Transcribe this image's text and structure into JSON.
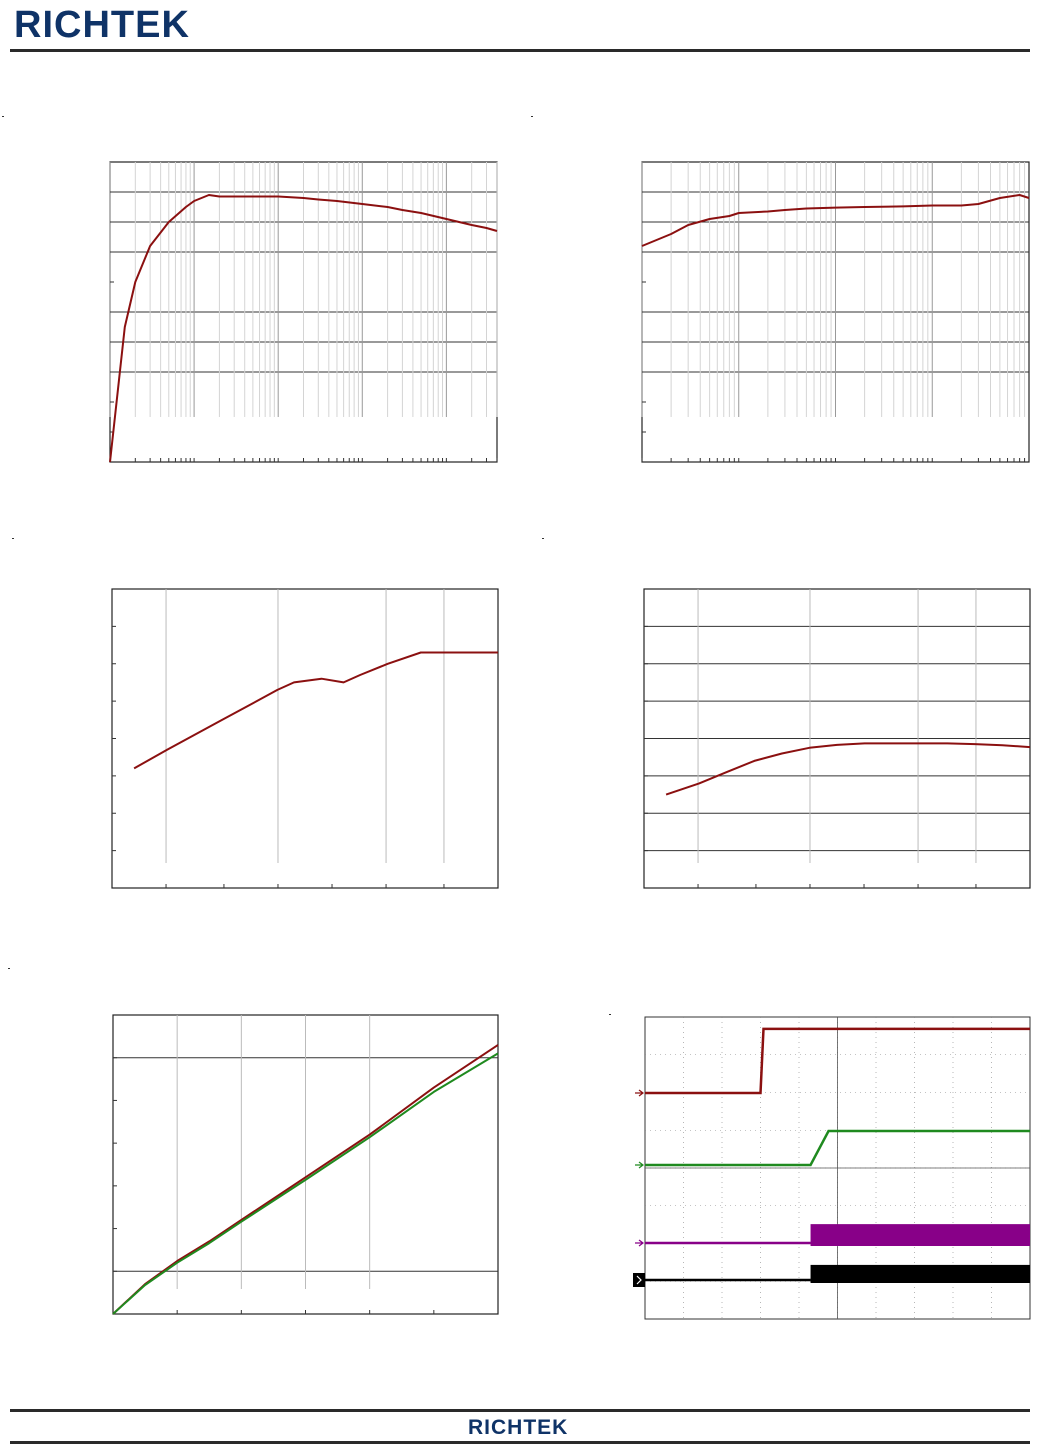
{
  "header": {
    "logo_text": "RICHTEK"
  },
  "footer": {
    "logo_text": "RICHTEK"
  },
  "colors": {
    "brand": "#0f3367",
    "curve_red": "#8b1010",
    "curve_green": "#1f8a1f",
    "trace_purple": "#880088",
    "trace_black": "#000000"
  },
  "chart_data": [
    {
      "type": "line",
      "scale": "log-x",
      "x": [
        0.001,
        0.0015,
        0.002,
        0.003,
        0.005,
        0.008,
        0.01,
        0.015,
        0.02,
        0.03,
        0.05,
        0.1,
        0.2,
        0.3,
        0.5,
        1,
        2,
        3,
        5,
        10,
        20,
        30,
        40
      ],
      "series": [
        {
          "values": [
            0.0,
            0.45,
            0.6,
            0.72,
            0.8,
            0.85,
            0.87,
            0.89,
            0.885,
            0.885,
            0.885,
            0.885,
            0.88,
            0.875,
            0.87,
            0.86,
            0.85,
            0.84,
            0.83,
            0.81,
            0.79,
            0.78,
            0.77
          ]
        }
      ],
      "xlim": [
        0.001,
        40
      ],
      "ylim": [
        0,
        1
      ]
    },
    {
      "type": "line",
      "scale": "log-x",
      "x": [
        0.001,
        0.002,
        0.003,
        0.005,
        0.008,
        0.01,
        0.02,
        0.03,
        0.05,
        0.1,
        0.2,
        0.5,
        1,
        2,
        3,
        5,
        8,
        10
      ],
      "series": [
        {
          "values": [
            0.72,
            0.76,
            0.79,
            0.81,
            0.82,
            0.83,
            0.835,
            0.84,
            0.845,
            0.848,
            0.85,
            0.852,
            0.855,
            0.855,
            0.86,
            0.88,
            0.89,
            0.88
          ]
        }
      ],
      "xlim": [
        0.001,
        10
      ],
      "ylim": [
        0,
        1
      ]
    },
    {
      "type": "line",
      "x": [
        0.4,
        1.0,
        1.5,
        2.0,
        2.5,
        3.0,
        3.3,
        3.8,
        4.2,
        4.5,
        5.0,
        5.6,
        6.0,
        6.4,
        7.0
      ],
      "series": [
        {
          "values": [
            0.32,
            0.37,
            0.41,
            0.45,
            0.49,
            0.53,
            0.55,
            0.56,
            0.55,
            0.57,
            0.6,
            0.63,
            0.63,
            0.63,
            0.63
          ]
        }
      ],
      "xlim": [
        0,
        7
      ],
      "ylim": [
        0,
        0.8
      ]
    },
    {
      "type": "line",
      "x": [
        0.4,
        1.0,
        1.5,
        2.0,
        2.5,
        3.0,
        3.5,
        4.0,
        4.5,
        5.0,
        5.5,
        6.0,
        6.5,
        7.0
      ],
      "series": [
        {
          "values": [
            0.25,
            0.28,
            0.31,
            0.34,
            0.36,
            0.375,
            0.383,
            0.387,
            0.387,
            0.387,
            0.387,
            0.385,
            0.382,
            0.377
          ]
        }
      ],
      "xlim": [
        0,
        7
      ],
      "ylim": [
        0,
        0.8
      ]
    },
    {
      "type": "line",
      "x": [
        0,
        0.5,
        1,
        1.5,
        2,
        3,
        4,
        5,
        6
      ],
      "series": [
        {
          "values": [
            0,
            0.35,
            0.62,
            0.85,
            1.1,
            1.6,
            2.1,
            2.65,
            3.15
          ]
        },
        {
          "values": [
            0,
            0.34,
            0.6,
            0.83,
            1.08,
            1.57,
            2.07,
            2.6,
            3.05
          ]
        }
      ],
      "xlim": [
        0,
        6
      ],
      "ylim": [
        0,
        3.5
      ]
    },
    {
      "type": "line",
      "scope": true,
      "x_divisions": 10,
      "y_divisions": 8,
      "traces": [
        {
          "marker": "1",
          "level_low": 0.75,
          "level_high": 1.7,
          "step_at": 3.0
        },
        {
          "marker": "2",
          "level_low": 0.0,
          "level_high": 0.9,
          "step_at": 4.3
        },
        {
          "marker": "3",
          "level_low": 0.0,
          "level_high": 0.5,
          "step_at": 4.3
        },
        {
          "marker": "4",
          "level_low": 0.0,
          "level_high": 0.4,
          "step_at": 4.3
        }
      ]
    }
  ]
}
